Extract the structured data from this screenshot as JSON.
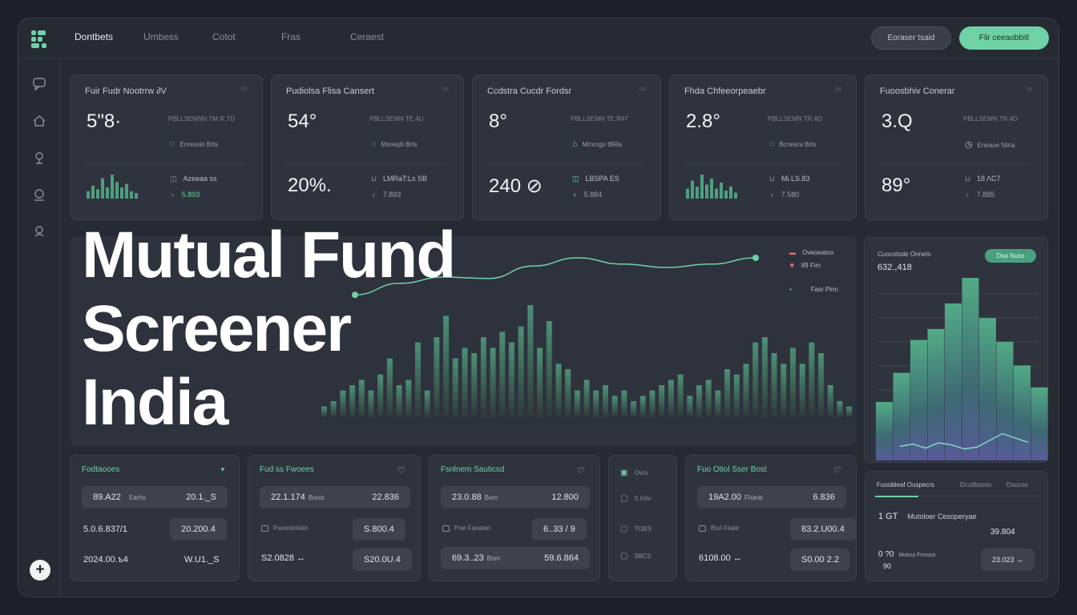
{
  "nav": {
    "items": [
      "Dontbets",
      "Umbess",
      "Cotot",
      "Fras",
      "Ceraest"
    ],
    "active_index": 0,
    "ghost_button": "Eoraser tsaid",
    "primary_button": "Flir ceeaobbitl",
    "accent_color": "#6fd1a6"
  },
  "sidebar": {
    "icons": [
      "chat-icon",
      "home-icon",
      "location-icon",
      "profile-icon",
      "user-icon"
    ],
    "add_button": "+"
  },
  "kpis": [
    {
      "title": "Fuir Fudr Nootrrw ∂V",
      "dots": "⁽¹⁾",
      "value": "5\"8·",
      "sub": "PBLLSEMNN TM.R.TD",
      "mini": "Enresvin Brts",
      "value2": "",
      "row1": "Azeeaa ss",
      "row2": "5.893",
      "spark": [
        8,
        14,
        10,
        22,
        12,
        26,
        18,
        12,
        16,
        8,
        6
      ]
    },
    {
      "title": "Pudiolsa Flisa Cansert",
      "dots": "⁽¹⁾",
      "value": "54°",
      "sub": "PBLLSEMN TE.4U",
      "mini": "Moreqiti Brts",
      "value2": "20%.",
      "row1": "LMRaT:Ls SB",
      "row2": "7.893",
      "spark": []
    },
    {
      "title": "Ccdstra Cucdr Fordsr",
      "dots": "⁽¹⁾",
      "value": "8°",
      "sub": "PBLLSEMN TE.R4T",
      "mini": "Mrncrgo tBRa",
      "value2": "240 ⊘",
      "row1": "LBSPA ES",
      "row2": "5.884",
      "spark": []
    },
    {
      "title": "Fhda Chfeeorpeaebr",
      "dots": "⁽¹⁾",
      "value": "2.8°",
      "sub": "PBLLSEMN TR.4D",
      "mini": "Bcnesra Brts",
      "value2": "",
      "row1": "Mi.LS.83",
      "row2": "7.580",
      "spark": [
        10,
        18,
        12,
        24,
        14,
        20,
        10,
        16,
        8,
        12,
        6
      ]
    },
    {
      "title": "Fuoosbhiv Conerar",
      "dots": "⁽¹⁾",
      "value": "3.Q",
      "sub": "PBLLSEMN TR.4D",
      "mini": "Eneaoe Ntrta",
      "value2": "89°",
      "row1": "18 ΛC7",
      "row2": "7.885",
      "spark": []
    }
  ],
  "hero": {
    "title_line1": "Mutual Fund",
    "title_line2": "Screener",
    "title_line3": "India",
    "legend": [
      "Oveoeatoo",
      "89 Fim",
      "Fasr Pinn"
    ],
    "bars": [
      4,
      6,
      10,
      12,
      14,
      10,
      16,
      22,
      12,
      14,
      28,
      10,
      30,
      38,
      22,
      26,
      24,
      30,
      26,
      32,
      28,
      34,
      42,
      26,
      36,
      20,
      18,
      10,
      14,
      10,
      12,
      8,
      10,
      6,
      8,
      10,
      12,
      14,
      16,
      8,
      12,
      14,
      10,
      18,
      16,
      20,
      28,
      30,
      24,
      20,
      26,
      20,
      28,
      24,
      12,
      6,
      4
    ],
    "trend": [
      0.18,
      0.42,
      0.55,
      0.52,
      0.78,
      0.95,
      0.82,
      0.75,
      0.82,
      0.95
    ]
  },
  "side_chart": {
    "title": "Cuocotode Onnets",
    "value": "632.,418",
    "pill": "Dsa Nuss",
    "bars": [
      32,
      48,
      66,
      72,
      86,
      100,
      78,
      65,
      52,
      40
    ],
    "line": [
      0.25,
      0.35,
      0.18,
      0.4,
      0.32,
      0.15,
      0.22,
      0.5,
      0.78,
      0.6,
      0.42
    ]
  },
  "lists": [
    {
      "title": "Fodtaooes",
      "icon": "chevron-down-icon",
      "rows": [
        {
          "left": "89.A22",
          "left_small": "Earhs",
          "right": "20.1._S"
        },
        {
          "left": "5.0.6.837/1",
          "left_small": "",
          "right": "20.200.4"
        },
        {
          "left": "2024.00.ъ4",
          "left_small": "",
          "right": "W.U1._S"
        }
      ]
    },
    {
      "title": "Fud ss Fwoees",
      "icon": "heart-icon",
      "rows": [
        {
          "left": "22.1.174",
          "left_small": "Bonis",
          "right": "22.836"
        },
        {
          "left": "Paoerliofalin",
          "left_small": "",
          "right": "S.800.4"
        },
        {
          "left": "S2.0828 ↔",
          "left_small": "",
          "right": "S20.0U.4"
        }
      ]
    },
    {
      "title": "Fsnlnem Sauticsd",
      "icon": "heart-icon",
      "rows": [
        {
          "left": "23.0.88",
          "left_small": "Bom",
          "right": "12.800"
        },
        {
          "left": "Poe Faoalen",
          "left_small": "",
          "right": "6..33 / 9"
        },
        {
          "left": "69.3..23",
          "left_small": "Bnm",
          "right": "59.6.864"
        }
      ]
    },
    {
      "title": "",
      "icon": "",
      "rows": [
        {
          "left": "Ovrs",
          "left_small": "",
          "right": ""
        },
        {
          "left": "S lcliv",
          "left_small": "",
          "right": ""
        },
        {
          "left": "TOBS",
          "left_small": "",
          "right": ""
        },
        {
          "left": "S8CS",
          "left_small": "",
          "right": ""
        }
      ]
    },
    {
      "title": "Fuo Otiol Sser Bost",
      "icon": "heart-icon",
      "rows": [
        {
          "left": "19A2.00",
          "left_small": "Fhanb",
          "right": "6.836"
        },
        {
          "left": "Bsd Fliale",
          "left_small": "",
          "right": "83.2.U00.4"
        },
        {
          "left": "6108.00 ↔",
          "left_small": "",
          "right": "S0.00 2.2"
        }
      ]
    },
    {
      "title": "Fuoobleaf Ouspecrs",
      "tab2": "Dcutllstusn",
      "tab3": "Dsucos",
      "icon": "",
      "rows": [
        {
          "left": "1 GT",
          "left_small": "Mutoloer Cesoperyae",
          "right": "39.804"
        },
        {
          "left": "0 ?0",
          "left_small": "Mutvut Fnnsos",
          "right": "23.023 ↔"
        },
        {
          "left": "90",
          "left_small": "",
          "right": ""
        }
      ]
    }
  ]
}
